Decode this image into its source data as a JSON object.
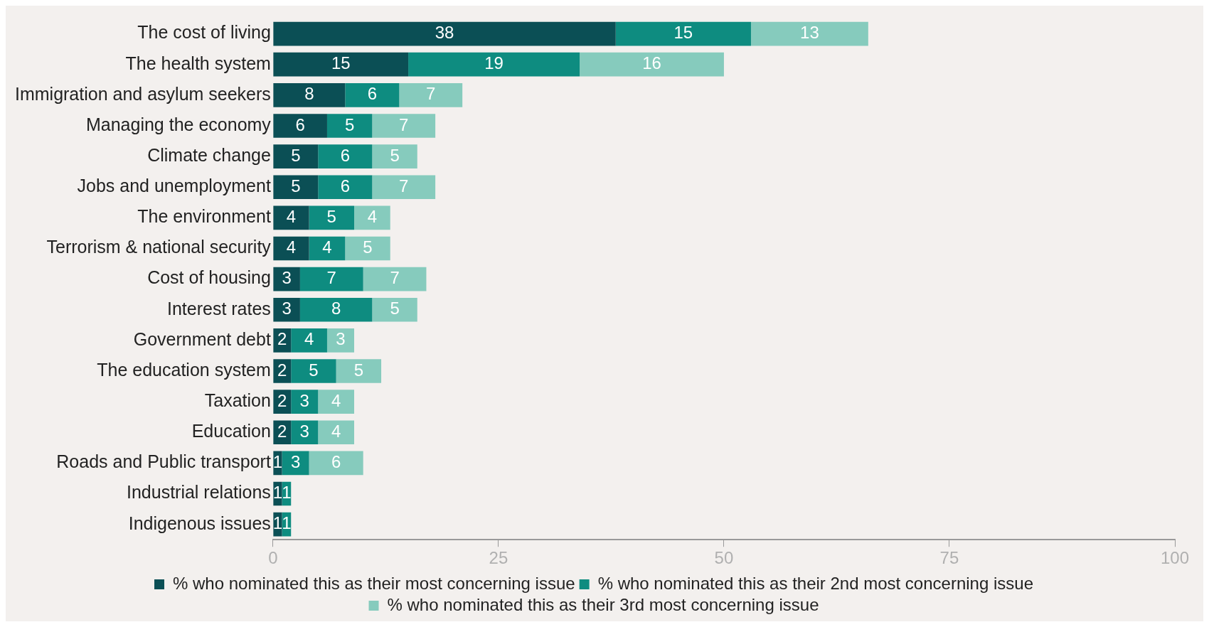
{
  "chart_data": {
    "type": "bar",
    "orientation": "horizontal",
    "stacked": true,
    "categories": [
      "The cost of living",
      "The health system",
      "Immigration and asylum seekers",
      "Managing the economy",
      "Climate change",
      "Jobs and unemployment",
      "The environment",
      "Terrorism & national security",
      "Cost of housing",
      "Interest rates",
      "Government debt",
      "The education system",
      "Taxation",
      "Education",
      "Roads and Public transport",
      "Industrial relations",
      "Indigenous issues"
    ],
    "series": [
      {
        "name": "% who nominated this as their most concerning issue",
        "color": "#0b4f55",
        "values": [
          38,
          15,
          8,
          6,
          5,
          5,
          4,
          4,
          3,
          3,
          2,
          2,
          2,
          2,
          1,
          1,
          1
        ],
        "value_labels": [
          "38",
          "15",
          "8",
          "6",
          "5",
          "5",
          "4",
          "4",
          "3",
          "3",
          "2",
          "2",
          "2",
          "2",
          "1",
          "1",
          "1"
        ]
      },
      {
        "name": "% who nominated this as their 2nd most concerning issue",
        "color": "#0e8c80",
        "values": [
          15,
          19,
          6,
          5,
          6,
          6,
          5,
          4,
          7,
          8,
          4,
          5,
          3,
          3,
          3,
          1,
          1
        ],
        "value_labels": [
          "15",
          "19",
          "6",
          "5",
          "6",
          "6",
          "5",
          "4",
          "7",
          "8",
          "4",
          "5",
          "3",
          "3",
          "3",
          "1",
          "1"
        ]
      },
      {
        "name": "% who nominated this as their 3rd most concerning issue",
        "color": "#86cbbd",
        "values": [
          13,
          16,
          7,
          7,
          5,
          7,
          4,
          5,
          7,
          5,
          3,
          5,
          4,
          4,
          6,
          0,
          0
        ],
        "value_labels": [
          "13",
          "16",
          "7",
          "7",
          "5",
          "7",
          "4",
          "5",
          "7",
          "5",
          "3",
          "5",
          "4",
          "4",
          "6",
          null,
          null
        ]
      }
    ],
    "xlim": [
      0,
      100
    ],
    "xticks": [
      0,
      25,
      50,
      75,
      100
    ],
    "grid": false,
    "legend": "bottom"
  }
}
